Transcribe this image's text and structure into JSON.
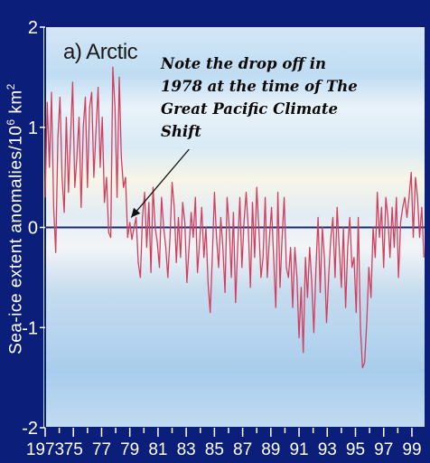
{
  "chart_data": {
    "type": "line",
    "panel_label": "a) Arctic",
    "ylabel": "Sea-ice extent anomalies/10",
    "ylabel_exponent": "6",
    "ylabel_unit": " km",
    "ylabel_unit_exponent": "2",
    "xlabel": "",
    "xlim": [
      1973,
      1999.9
    ],
    "ylim": [
      -2,
      2
    ],
    "y_ticks": [
      "2",
      "1",
      "0",
      "-1",
      "-2"
    ],
    "y_tick_values": [
      2,
      1,
      0,
      -1,
      -2
    ],
    "x_ticks": [
      "1973",
      "75",
      "77",
      "79",
      "81",
      "83",
      "85",
      "87",
      "89",
      "91",
      "93",
      "95",
      "97",
      "99"
    ],
    "x_tick_values": [
      1973,
      1975,
      1977,
      1979,
      1981,
      1983,
      1985,
      1987,
      1989,
      1991,
      1993,
      1995,
      1997,
      1999
    ],
    "annotation": {
      "lines": [
        "Note the drop off in",
        "1978 at the time of The",
        "Great Pacific Climate",
        "Shift"
      ],
      "arrow_tip": [
        1979.1,
        0.1
      ],
      "arrow_tail": [
        1983.2,
        0.78
      ]
    },
    "series": [
      {
        "color": "#d0405e",
        "x": [
          1973.0,
          1973.15,
          1973.3,
          1973.45,
          1973.6,
          1973.75,
          1973.9,
          1974.05,
          1974.2,
          1974.35,
          1974.5,
          1974.65,
          1974.8,
          1974.95,
          1975.1,
          1975.25,
          1975.4,
          1975.55,
          1975.7,
          1975.85,
          1976.0,
          1976.15,
          1976.3,
          1976.45,
          1976.6,
          1976.75,
          1976.9,
          1977.05,
          1977.2,
          1977.35,
          1977.5,
          1977.65,
          1977.8,
          1977.95,
          1978.1,
          1978.25,
          1978.4,
          1978.55,
          1978.7,
          1978.85,
          1979.0,
          1979.15,
          1979.3,
          1979.45,
          1979.6,
          1979.75,
          1979.9,
          1980.05,
          1980.2,
          1980.35,
          1980.5,
          1980.65,
          1980.8,
          1980.95,
          1981.1,
          1981.25,
          1981.4,
          1981.55,
          1981.7,
          1981.85,
          1982.0,
          1982.15,
          1982.3,
          1982.45,
          1982.6,
          1982.75,
          1982.9,
          1983.05,
          1983.2,
          1983.35,
          1983.5,
          1983.65,
          1983.8,
          1983.95,
          1984.1,
          1984.25,
          1984.4,
          1984.55,
          1984.7,
          1984.85,
          1985.0,
          1985.15,
          1985.3,
          1985.45,
          1985.6,
          1985.75,
          1985.9,
          1986.05,
          1986.2,
          1986.35,
          1986.5,
          1986.65,
          1986.8,
          1986.95,
          1987.1,
          1987.25,
          1987.4,
          1987.55,
          1987.7,
          1987.85,
          1988.0,
          1988.15,
          1988.3,
          1988.45,
          1988.6,
          1988.75,
          1988.9,
          1989.05,
          1989.2,
          1989.35,
          1989.5,
          1989.65,
          1989.8,
          1989.95,
          1990.1,
          1990.25,
          1990.4,
          1990.55,
          1990.7,
          1990.85,
          1991.0,
          1991.15,
          1991.3,
          1991.45,
          1991.6,
          1991.75,
          1991.9,
          1992.05,
          1992.2,
          1992.35,
          1992.5,
          1992.65,
          1992.8,
          1992.95,
          1993.1,
          1993.25,
          1993.4,
          1993.55,
          1993.7,
          1993.85,
          1994.0,
          1994.15,
          1994.3,
          1994.45,
          1994.6,
          1994.75,
          1994.9,
          1995.05,
          1995.2,
          1995.35,
          1995.5,
          1995.65,
          1995.8,
          1995.95,
          1996.1,
          1996.25,
          1996.4,
          1996.55,
          1996.7,
          1996.85,
          1997.0,
          1997.15,
          1997.3,
          1997.45,
          1997.6,
          1997.75,
          1997.9,
          1998.05,
          1998.2,
          1998.35,
          1998.5,
          1998.65,
          1998.8,
          1998.95,
          1999.1,
          1999.25,
          1999.4,
          1999.55,
          1999.7,
          1999.85
        ],
        "values": [
          0.3,
          1.25,
          0.6,
          1.35,
          0.2,
          -0.25,
          0.9,
          1.3,
          0.5,
          0.15,
          1.1,
          0.35,
          0.9,
          1.45,
          0.4,
          0.7,
          1.1,
          0.2,
          1.0,
          1.3,
          0.4,
          1.2,
          1.35,
          0.5,
          0.95,
          1.4,
          0.6,
          1.1,
          0.25,
          0.5,
          -0.05,
          -0.1,
          1.6,
          1.2,
          0.3,
          1.5,
          0.7,
          0.4,
          0.5,
          -0.1,
          0.05,
          -0.12,
          0.0,
          0.1,
          -0.35,
          -0.5,
          0.1,
          0.35,
          -0.2,
          0.25,
          -0.45,
          0.4,
          0.0,
          -0.15,
          -0.4,
          0.3,
          0.0,
          -0.2,
          -0.5,
          -0.1,
          0.45,
          0.2,
          -0.35,
          0.1,
          -0.3,
          0.25,
          0.05,
          -0.55,
          -0.2,
          0.15,
          -0.1,
          0.3,
          -0.45,
          -0.15,
          0.2,
          -0.3,
          0.0,
          -0.55,
          -0.85,
          -0.3,
          0.35,
          -0.1,
          -0.4,
          0.1,
          -0.2,
          -0.65,
          0.3,
          0.0,
          -0.5,
          0.15,
          -0.75,
          -0.2,
          0.3,
          -0.4,
          0.05,
          0.35,
          0.0,
          -0.6,
          0.25,
          -0.3,
          0.4,
          0.0,
          -0.5,
          -0.3,
          0.3,
          -0.5,
          -0.1,
          0.2,
          -0.3,
          -0.8,
          0.35,
          -0.6,
          -0.1,
          0.3,
          -0.4,
          -0.5,
          -0.2,
          -0.8,
          -0.2,
          -0.5,
          -1.1,
          -0.6,
          -1.25,
          -0.3,
          -0.7,
          -0.2,
          -0.55,
          -1.05,
          -0.4,
          0.1,
          -0.65,
          0.0,
          -0.3,
          -0.95,
          -0.5,
          -0.1,
          0.1,
          -0.5,
          0.2,
          -0.2,
          -0.6,
          0.0,
          -0.8,
          -0.2,
          0.1,
          -0.4,
          -0.3,
          -0.85,
          0.1,
          -1.0,
          -1.4,
          -1.35,
          -0.95,
          -0.4,
          -0.7,
          0.0,
          -0.3,
          0.35,
          -0.1,
          0.2,
          -0.4,
          0.3,
          0.1,
          -0.3,
          0.2,
          -0.2,
          0.3,
          -0.5,
          0.05,
          0.2,
          0.3,
          0.1,
          0.3,
          0.55,
          -0.1,
          0.5,
          0.3,
          -0.1,
          0.2,
          -0.3
        ]
      }
    ],
    "grid": false,
    "zero_line": true,
    "colors": {
      "frame_bg": "#0b1f7a",
      "plot_bg_light": "#dbe9f6",
      "plot_bg_band": "#bdd8ee",
      "text": "#ffffff",
      "series": "#d0405e"
    }
  }
}
